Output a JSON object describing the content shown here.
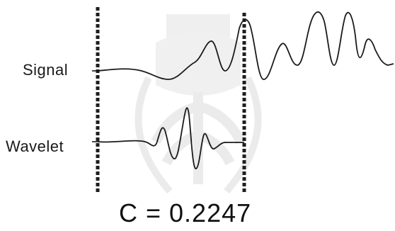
{
  "labels": {
    "signal": "Signal",
    "wavelet": "Wavelet"
  },
  "coefficient_text": "C = 0.2247",
  "watermark": {
    "type": "university-seal",
    "color": "#e6e6e6"
  },
  "colors": {
    "ink": "#1a1a1a",
    "window_border": "#2a2a2a"
  }
}
